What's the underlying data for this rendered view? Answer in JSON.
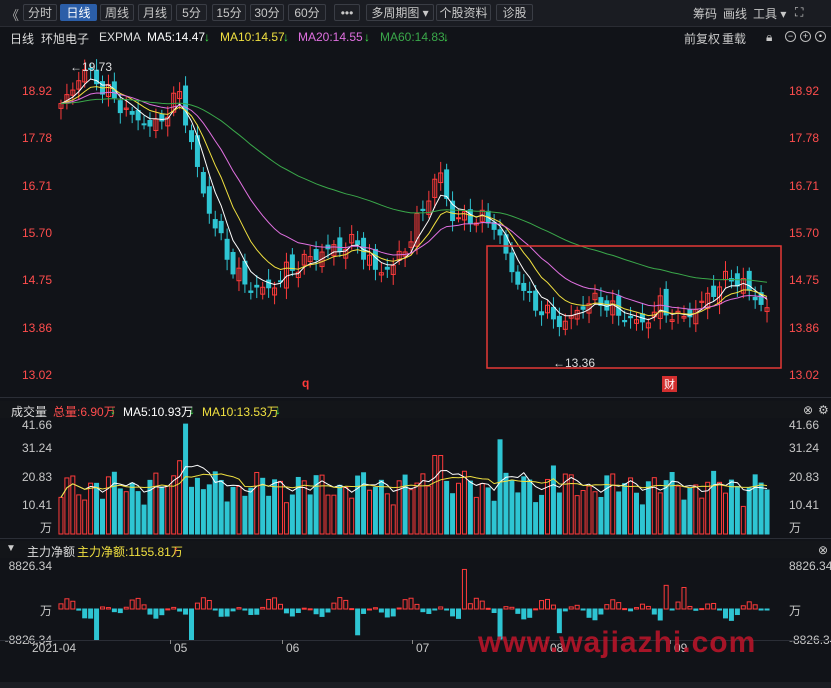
{
  "toolbar": {
    "back": "《",
    "buttons": [
      "分时",
      "日线",
      "周线",
      "月线",
      "5分",
      "15分",
      "30分",
      "60分",
      "•••",
      "多周期图 ▾",
      "个股资料",
      "诊股"
    ],
    "active": "日线",
    "right": [
      "筹码",
      "画线",
      "工具 ▾",
      "⛶"
    ]
  },
  "info": {
    "period": "日线",
    "stock": "环旭电子",
    "indicator": "EXPMA",
    "ma5": "MA5:14.47",
    "ma10": "MA10:14.57",
    "ma20": "MA20:14.55",
    "ma60": "MA60:14.83",
    "fuquan": "前复权",
    "reset": "重载",
    "arrow_down": "↓"
  },
  "price_axis": {
    "ticks": [
      "18.92",
      "17.78",
      "16.71",
      "15.70",
      "14.75",
      "13.86",
      "13.02"
    ]
  },
  "annotations": {
    "high": "←19.73",
    "low": "←13.36",
    "marker_q": "q",
    "marker_cai": "财"
  },
  "volume": {
    "title": "成交量",
    "total": "总量:6.90万",
    "ma5": "MA5:10.93万",
    "ma10": "MA10:13.53万",
    "ticks": [
      "41.66",
      "31.24",
      "20.83",
      "10.41",
      "万"
    ]
  },
  "netflow": {
    "title": "主力净额",
    "value": "主力净额:1155.81万",
    "ticks": [
      "8826.34",
      "万",
      "-8826.34"
    ]
  },
  "xaxis": [
    "2021-04",
    "05",
    "06",
    "07",
    "08",
    "09"
  ],
  "watermark": "www.wajiazhi.com",
  "colors": {
    "up": "#ff3b3b",
    "down": "#2ec5d3",
    "ma5": "#ffffff",
    "ma10": "#f0e040",
    "ma20": "#e070e0",
    "ma60": "#3aa84a",
    "axis": "#ff4d4d"
  }
}
